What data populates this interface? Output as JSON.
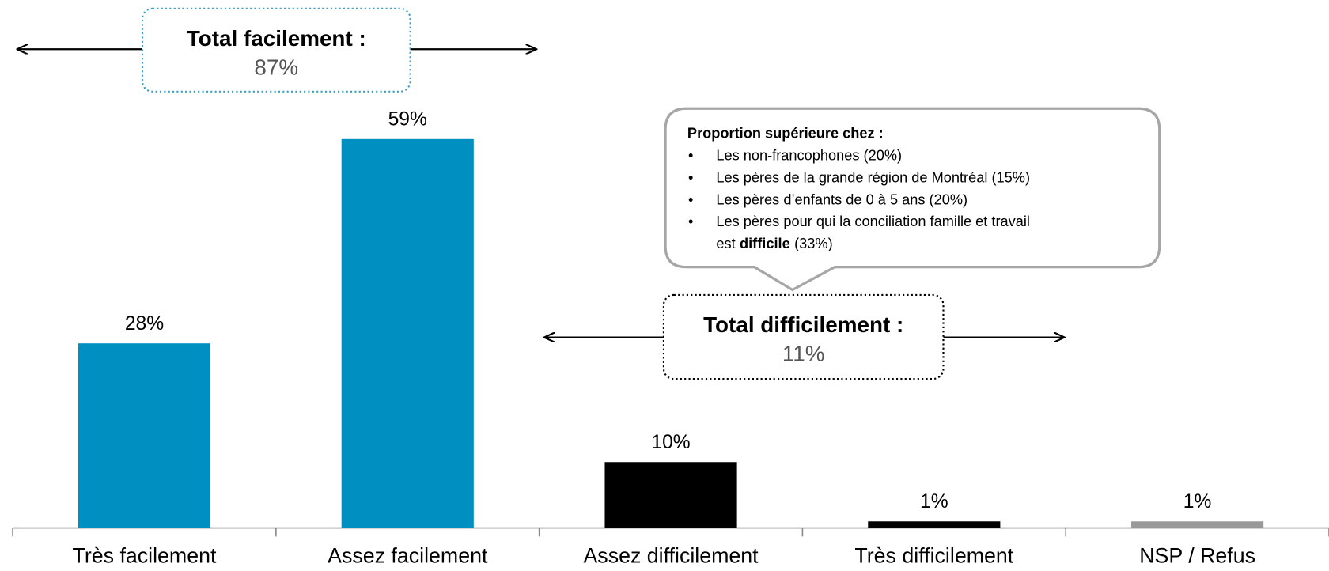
{
  "chart_data": {
    "type": "bar",
    "categories": [
      "Très facilement",
      "Assez facilement",
      "Assez difficilement",
      "Très difficilement",
      "NSP / Refus"
    ],
    "values": [
      28,
      59,
      10,
      1,
      1
    ],
    "value_labels": [
      "28%",
      "59%",
      "10%",
      "1%",
      "1%"
    ],
    "colors": [
      "#008fc1",
      "#008fc1",
      "#000000",
      "#000000",
      "#999999"
    ],
    "annotations": [
      {
        "title": "Total facilement :",
        "text": "87%",
        "color": "#3aa0c8"
      },
      {
        "title": "Total difficilement :",
        "text": "11%",
        "color": "#000000"
      }
    ],
    "callout": {
      "title": "Proportion supérieure chez :",
      "bullets": [
        "Les non-francophones (20%)",
        "Les pères de la grande région de Montréal (15%)",
        "Les pères d’enfants de 0 à 5 ans (20%)",
        [
          "Les pères pour qui la conciliation famille et travail",
          "est",
          "difficile",
          "(33%)"
        ]
      ]
    }
  }
}
